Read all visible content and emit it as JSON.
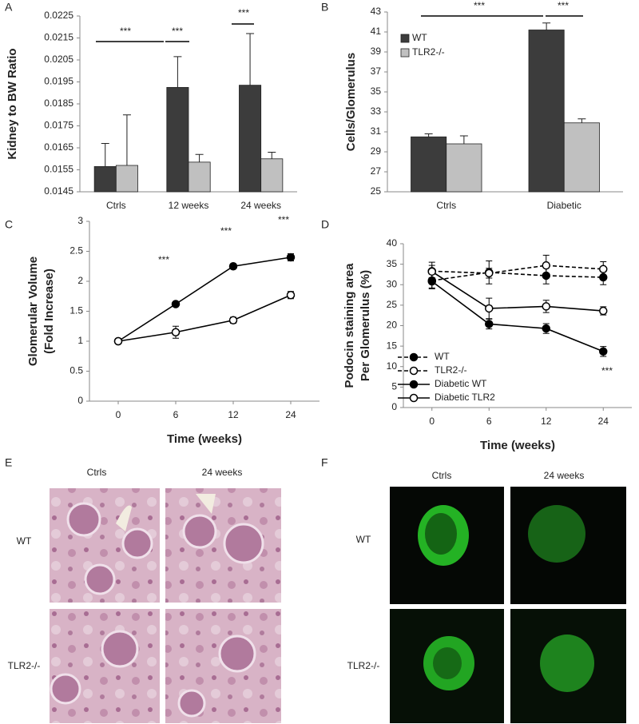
{
  "chart_data": [
    {
      "type": "bar",
      "panel": "A",
      "ylabel": [
        "Kidney to BW Ratio"
      ],
      "categories": [
        "Ctrls",
        "12 weeks",
        "24 weeks"
      ],
      "series": [
        {
          "color": "#3c3c3c",
          "values": [
            0.01565,
            0.01925,
            0.01935
          ],
          "errors": [
            0.00105,
            0.0014,
            0.00235
          ]
        },
        {
          "color": "#c0c0c0",
          "values": [
            0.0157,
            0.01585,
            0.016
          ],
          "errors": [
            0.0023,
            0.00035,
            0.0003
          ]
        }
      ],
      "ylim": [
        0.0145,
        0.0225
      ],
      "yticks": [
        0.0145,
        0.0155,
        0.0165,
        0.0175,
        0.0185,
        0.0195,
        0.0205,
        0.0215,
        0.0225
      ],
      "annotations": [
        "***",
        "***",
        "***"
      ]
    },
    {
      "type": "bar",
      "panel": "B",
      "ylabel": [
        "Cells/Glomerulus"
      ],
      "categories": [
        "Ctrls",
        "Diabetic"
      ],
      "series": [
        {
          "name": "WT",
          "color": "#3c3c3c",
          "values": [
            30.5,
            41.2
          ],
          "errors": [
            0.3,
            0.7
          ]
        },
        {
          "name": "TLR2-/-",
          "color": "#c0c0c0",
          "values": [
            29.8,
            31.9
          ],
          "errors": [
            0.8,
            0.4
          ]
        }
      ],
      "ylim": [
        25,
        43
      ],
      "yticks": [
        25,
        27,
        29,
        31,
        33,
        35,
        37,
        39,
        41,
        43
      ],
      "legend": "upper-left",
      "annotations": [
        "***",
        "***"
      ]
    },
    {
      "type": "line",
      "panel": "C",
      "ylabel": [
        "Glomerular Volume",
        "(Fold Increase)"
      ],
      "xlabel": "Time (weeks)",
      "categories": [
        "0",
        "6",
        "12",
        "24"
      ],
      "series": [
        {
          "color": "#000000",
          "marker": "filled",
          "dash": false,
          "values": [
            1,
            1.62,
            2.25,
            2.4
          ],
          "errors": [
            0.03,
            0.03,
            0.04,
            0.06
          ]
        },
        {
          "color": "#000000",
          "marker": "open",
          "dash": false,
          "values": [
            1,
            1.15,
            1.35,
            1.77
          ],
          "errors": [
            0.03,
            0.1,
            0.05,
            0.06
          ]
        }
      ],
      "ylim": [
        0,
        3
      ],
      "yticks": [
        0,
        0.5,
        1,
        1.5,
        2,
        2.5,
        3
      ],
      "annotations": [
        "***",
        "***",
        "***"
      ]
    },
    {
      "type": "line",
      "panel": "D",
      "ylabel": [
        "Podocin staining area",
        "Per Glomerulus (%)"
      ],
      "xlabel": "Time (weeks)",
      "categories": [
        "0",
        "6",
        "12",
        "24"
      ],
      "series": [
        {
          "name": "WT",
          "color": "#000000",
          "marker": "filled",
          "dash": true,
          "values": [
            31,
            33,
            32.2,
            31.8
          ],
          "errors": [
            1.8,
            2.8,
            2,
            1.8
          ]
        },
        {
          "name": "TLR2-/-",
          "color": "#000000",
          "marker": "open",
          "dash": true,
          "values": [
            33.3,
            32.8,
            34.7,
            33.8
          ],
          "errors": [
            2.2,
            1.2,
            2.5,
            1.8
          ]
        },
        {
          "name": "Diabetic WT",
          "color": "#000000",
          "marker": "filled",
          "dash": false,
          "values": [
            30.8,
            20.4,
            19.3,
            13.7
          ],
          "errors": [
            1.8,
            1.2,
            1.2,
            1.2
          ]
        },
        {
          "name": "Diabetic TLR2",
          "color": "#000000",
          "marker": "open",
          "dash": false,
          "values": [
            33.2,
            24.2,
            24.7,
            23.6
          ],
          "errors": [
            1.5,
            2.5,
            1.5,
            1
          ]
        }
      ],
      "ylim": [
        0,
        40
      ],
      "yticks": [
        0,
        5,
        10,
        15,
        20,
        25,
        30,
        35,
        40
      ],
      "legend": "lower-left",
      "annotations": [
        "***"
      ]
    }
  ],
  "image_panels": [
    {
      "panel": "E",
      "columns": [
        "Ctrls",
        "24 weeks"
      ],
      "rows": [
        "WT",
        "TLR2-/-"
      ]
    },
    {
      "panel": "F",
      "columns": [
        "Ctrls",
        "24 weeks"
      ],
      "rows": [
        "WT",
        "TLR2-/-"
      ]
    }
  ]
}
